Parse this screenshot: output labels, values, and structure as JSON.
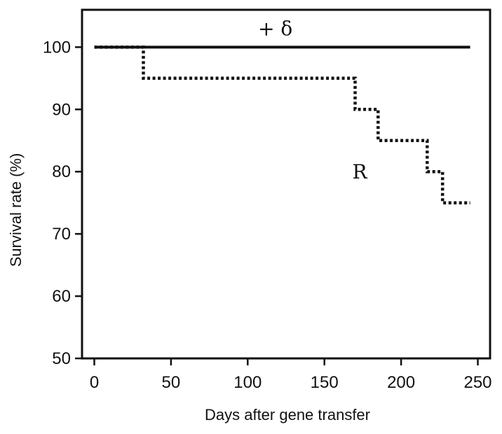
{
  "chart_data": {
    "type": "line",
    "title": "",
    "xlabel": "Days after gene transfer",
    "ylabel": "Survival rate (%)",
    "xlim": [
      -8,
      258
    ],
    "ylim": [
      50,
      106
    ],
    "xticks": [
      0,
      50,
      100,
      150,
      200,
      250
    ],
    "yticks": [
      50,
      60,
      70,
      80,
      90,
      100
    ],
    "grid": false,
    "series": [
      {
        "name": "+ δ",
        "style": "solid",
        "x": [
          0,
          245
        ],
        "y": [
          100,
          100
        ]
      },
      {
        "name": "R",
        "style": "dotted",
        "x": [
          0,
          32,
          32,
          170,
          170,
          185,
          185,
          217,
          217,
          227,
          227,
          245
        ],
        "y": [
          100,
          100,
          95,
          95,
          90,
          90,
          85,
          85,
          80,
          80,
          75,
          75
        ]
      }
    ],
    "annotations": [
      {
        "text": "+ δ",
        "x": 118,
        "y": 103
      },
      {
        "text": "R",
        "x": 173,
        "y": 80
      }
    ]
  }
}
